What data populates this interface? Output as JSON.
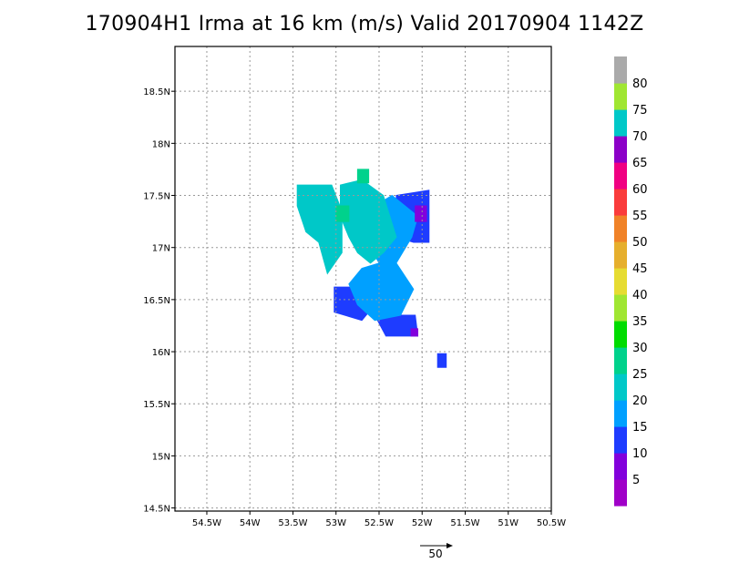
{
  "chart_data": {
    "type": "heatmap",
    "title": "170904H1 Irma at 16 km (m/s) Valid 20170904 1142Z",
    "xlabel": "",
    "ylabel": "",
    "xlim": [
      -54.87,
      -50.5
    ],
    "ylim": [
      14.47,
      18.93
    ],
    "x_ticks": [
      {
        "value": -54.5,
        "label": "54.5W"
      },
      {
        "value": -54.0,
        "label": "54W"
      },
      {
        "value": -53.5,
        "label": "53.5W"
      },
      {
        "value": -53.0,
        "label": "53W"
      },
      {
        "value": -52.5,
        "label": "52.5W"
      },
      {
        "value": -52.0,
        "label": "52W"
      },
      {
        "value": -51.5,
        "label": "51.5W"
      },
      {
        "value": -51.0,
        "label": "51W"
      },
      {
        "value": -50.5,
        "label": "50.5W"
      }
    ],
    "y_ticks": [
      {
        "value": 14.5,
        "label": "14.5N"
      },
      {
        "value": 15.0,
        "label": "15N"
      },
      {
        "value": 15.5,
        "label": "15.5N"
      },
      {
        "value": 16.0,
        "label": "16N"
      },
      {
        "value": 16.5,
        "label": "16.5N"
      },
      {
        "value": 17.0,
        "label": "17N"
      },
      {
        "value": 17.5,
        "label": "17.5N"
      },
      {
        "value": 18.0,
        "label": "18N"
      },
      {
        "value": 18.5,
        "label": "18.5N"
      }
    ],
    "grid": true,
    "colorbar": {
      "levels": [
        0,
        5,
        10,
        15,
        20,
        25,
        30,
        35,
        40,
        45,
        50,
        55,
        60,
        65,
        70,
        75,
        80,
        85
      ],
      "labels": [
        "5",
        "10",
        "15",
        "20",
        "25",
        "30",
        "35",
        "40",
        "45",
        "50",
        "55",
        "60",
        "65",
        "70",
        "75",
        "80"
      ],
      "colors": [
        "#a000c8",
        "#8200dc",
        "#1e3cff",
        "#00a0ff",
        "#00c8c8",
        "#00d28c",
        "#00dc00",
        "#a0e632",
        "#e6dc32",
        "#e6af2d",
        "#f08228",
        "#fa3c3c",
        "#f00082",
        "#8c00c8",
        "#00c8c8",
        "#a0e632",
        "#aaaaaa"
      ]
    },
    "wind_regions": [
      {
        "speed": 22,
        "polygon": [
          [
            -53.45,
            17.6
          ],
          [
            -53.05,
            17.6
          ],
          [
            -52.93,
            17.35
          ],
          [
            -52.93,
            16.95
          ],
          [
            -53.1,
            16.75
          ],
          [
            -53.2,
            17.05
          ],
          [
            -53.35,
            17.15
          ],
          [
            -53.45,
            17.4
          ]
        ]
      },
      {
        "speed": 12,
        "polygon": [
          [
            -53.02,
            16.62
          ],
          [
            -52.72,
            16.62
          ],
          [
            -52.55,
            16.45
          ],
          [
            -52.7,
            16.3
          ],
          [
            -53.02,
            16.38
          ]
        ]
      },
      {
        "speed": 12,
        "polygon": [
          [
            -52.55,
            16.35
          ],
          [
            -52.08,
            16.35
          ],
          [
            -52.05,
            16.15
          ],
          [
            -52.42,
            16.15
          ]
        ]
      },
      {
        "speed": 12,
        "polygon": [
          [
            -52.3,
            17.5
          ],
          [
            -51.92,
            17.55
          ],
          [
            -51.92,
            17.05
          ],
          [
            -52.1,
            17.05
          ],
          [
            -52.3,
            17.1
          ]
        ]
      },
      {
        "speed": 17,
        "polygon": [
          [
            -52.75,
            17.3
          ],
          [
            -52.35,
            17.5
          ],
          [
            -52.05,
            17.3
          ],
          [
            -52.12,
            17.1
          ],
          [
            -52.3,
            16.85
          ],
          [
            -52.1,
            16.6
          ],
          [
            -52.25,
            16.35
          ],
          [
            -52.55,
            16.3
          ],
          [
            -52.75,
            16.45
          ],
          [
            -52.85,
            16.65
          ],
          [
            -52.7,
            16.8
          ],
          [
            -52.5,
            16.85
          ],
          [
            -52.6,
            17.0
          ],
          [
            -52.75,
            17.1
          ]
        ]
      },
      {
        "speed": 24,
        "polygon": [
          [
            -52.95,
            17.6
          ],
          [
            -52.7,
            17.65
          ],
          [
            -52.45,
            17.5
          ],
          [
            -52.3,
            17.1
          ],
          [
            -52.45,
            16.95
          ],
          [
            -52.6,
            16.85
          ],
          [
            -52.75,
            16.95
          ],
          [
            -52.85,
            17.1
          ],
          [
            -52.95,
            17.3
          ]
        ]
      },
      {
        "speed": 26,
        "polygon": [
          [
            -52.75,
            17.75
          ],
          [
            -52.62,
            17.75
          ],
          [
            -52.62,
            17.62
          ],
          [
            -52.75,
            17.62
          ]
        ]
      },
      {
        "speed": 26,
        "polygon": [
          [
            -53.0,
            17.4
          ],
          [
            -52.85,
            17.4
          ],
          [
            -52.85,
            17.25
          ],
          [
            -53.0,
            17.25
          ]
        ]
      },
      {
        "speed": 12,
        "polygon": [
          [
            -51.82,
            15.98
          ],
          [
            -51.72,
            15.98
          ],
          [
            -51.72,
            15.85
          ],
          [
            -51.82,
            15.85
          ]
        ]
      },
      {
        "speed": 7,
        "polygon": [
          [
            -52.08,
            17.4
          ],
          [
            -51.95,
            17.4
          ],
          [
            -51.95,
            17.25
          ],
          [
            -52.08,
            17.25
          ]
        ]
      },
      {
        "speed": 7,
        "polygon": [
          [
            -52.13,
            16.22
          ],
          [
            -52.05,
            16.22
          ],
          [
            -52.05,
            16.15
          ],
          [
            -52.13,
            16.15
          ]
        ]
      }
    ],
    "reference_vector": {
      "label": "50"
    }
  }
}
